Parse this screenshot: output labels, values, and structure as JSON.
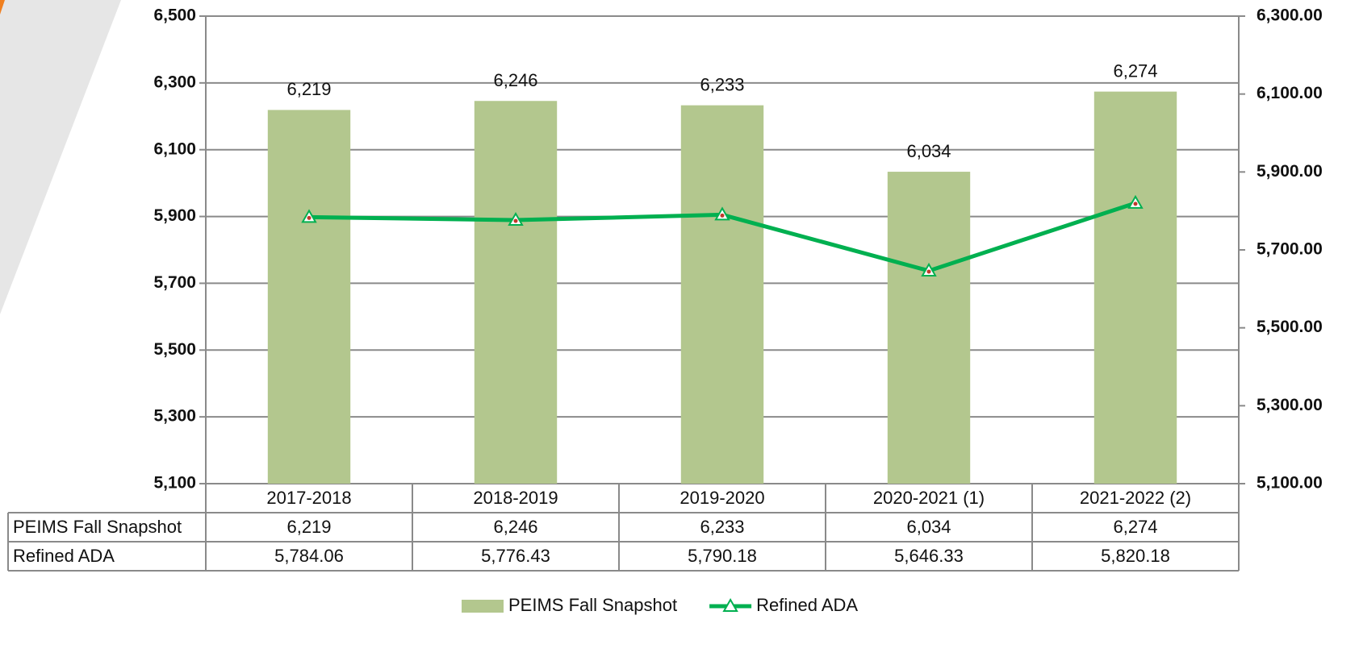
{
  "chart_data": {
    "type": "bar_line",
    "categories": [
      "2017-2018",
      "2018-2019",
      "2019-2020",
      "2020-2021 (1)",
      "2021-2022 (2)"
    ],
    "series": [
      {
        "name": "PEIMS Fall Snapshot",
        "type": "bar",
        "color": "#b3c78e",
        "values": [
          6219,
          6246,
          6233,
          6034,
          6274
        ],
        "value_labels": [
          "6,219",
          "6,246",
          "6,233",
          "6,034",
          "6,274"
        ]
      },
      {
        "name": "Refined ADA",
        "type": "line",
        "axis": "y2",
        "color": "#00b050",
        "values": [
          5784.06,
          5776.43,
          5790.18,
          5646.33,
          5820.18
        ],
        "value_labels": [
          "5,784.06",
          "5,776.43",
          "5,790.18",
          "5,646.33",
          "5,820.18"
        ]
      }
    ],
    "ylim": [
      5100,
      6500
    ],
    "yticks": [
      {
        "value": 5100,
        "label": "5,100"
      },
      {
        "value": 5300,
        "label": "5,300"
      },
      {
        "value": 5500,
        "label": "5,500"
      },
      {
        "value": 5700,
        "label": "5,700"
      },
      {
        "value": 5900,
        "label": "5,900"
      },
      {
        "value": 6100,
        "label": "6,100"
      },
      {
        "value": 6300,
        "label": "6,300"
      },
      {
        "value": 6500,
        "label": "6,500"
      }
    ],
    "y2lim": [
      5100,
      6300
    ],
    "y2ticks": [
      {
        "value": 5100,
        "label": "5,100.00"
      },
      {
        "value": 5300,
        "label": "5,300.00"
      },
      {
        "value": 5500,
        "label": "5,500.00"
      },
      {
        "value": 5700,
        "label": "5,700.00"
      },
      {
        "value": 5900,
        "label": "5,900.00"
      },
      {
        "value": 6100,
        "label": "6,100.00"
      },
      {
        "value": 6300,
        "label": "6,300.00"
      }
    ],
    "grid": true,
    "legend": "bottom"
  }
}
